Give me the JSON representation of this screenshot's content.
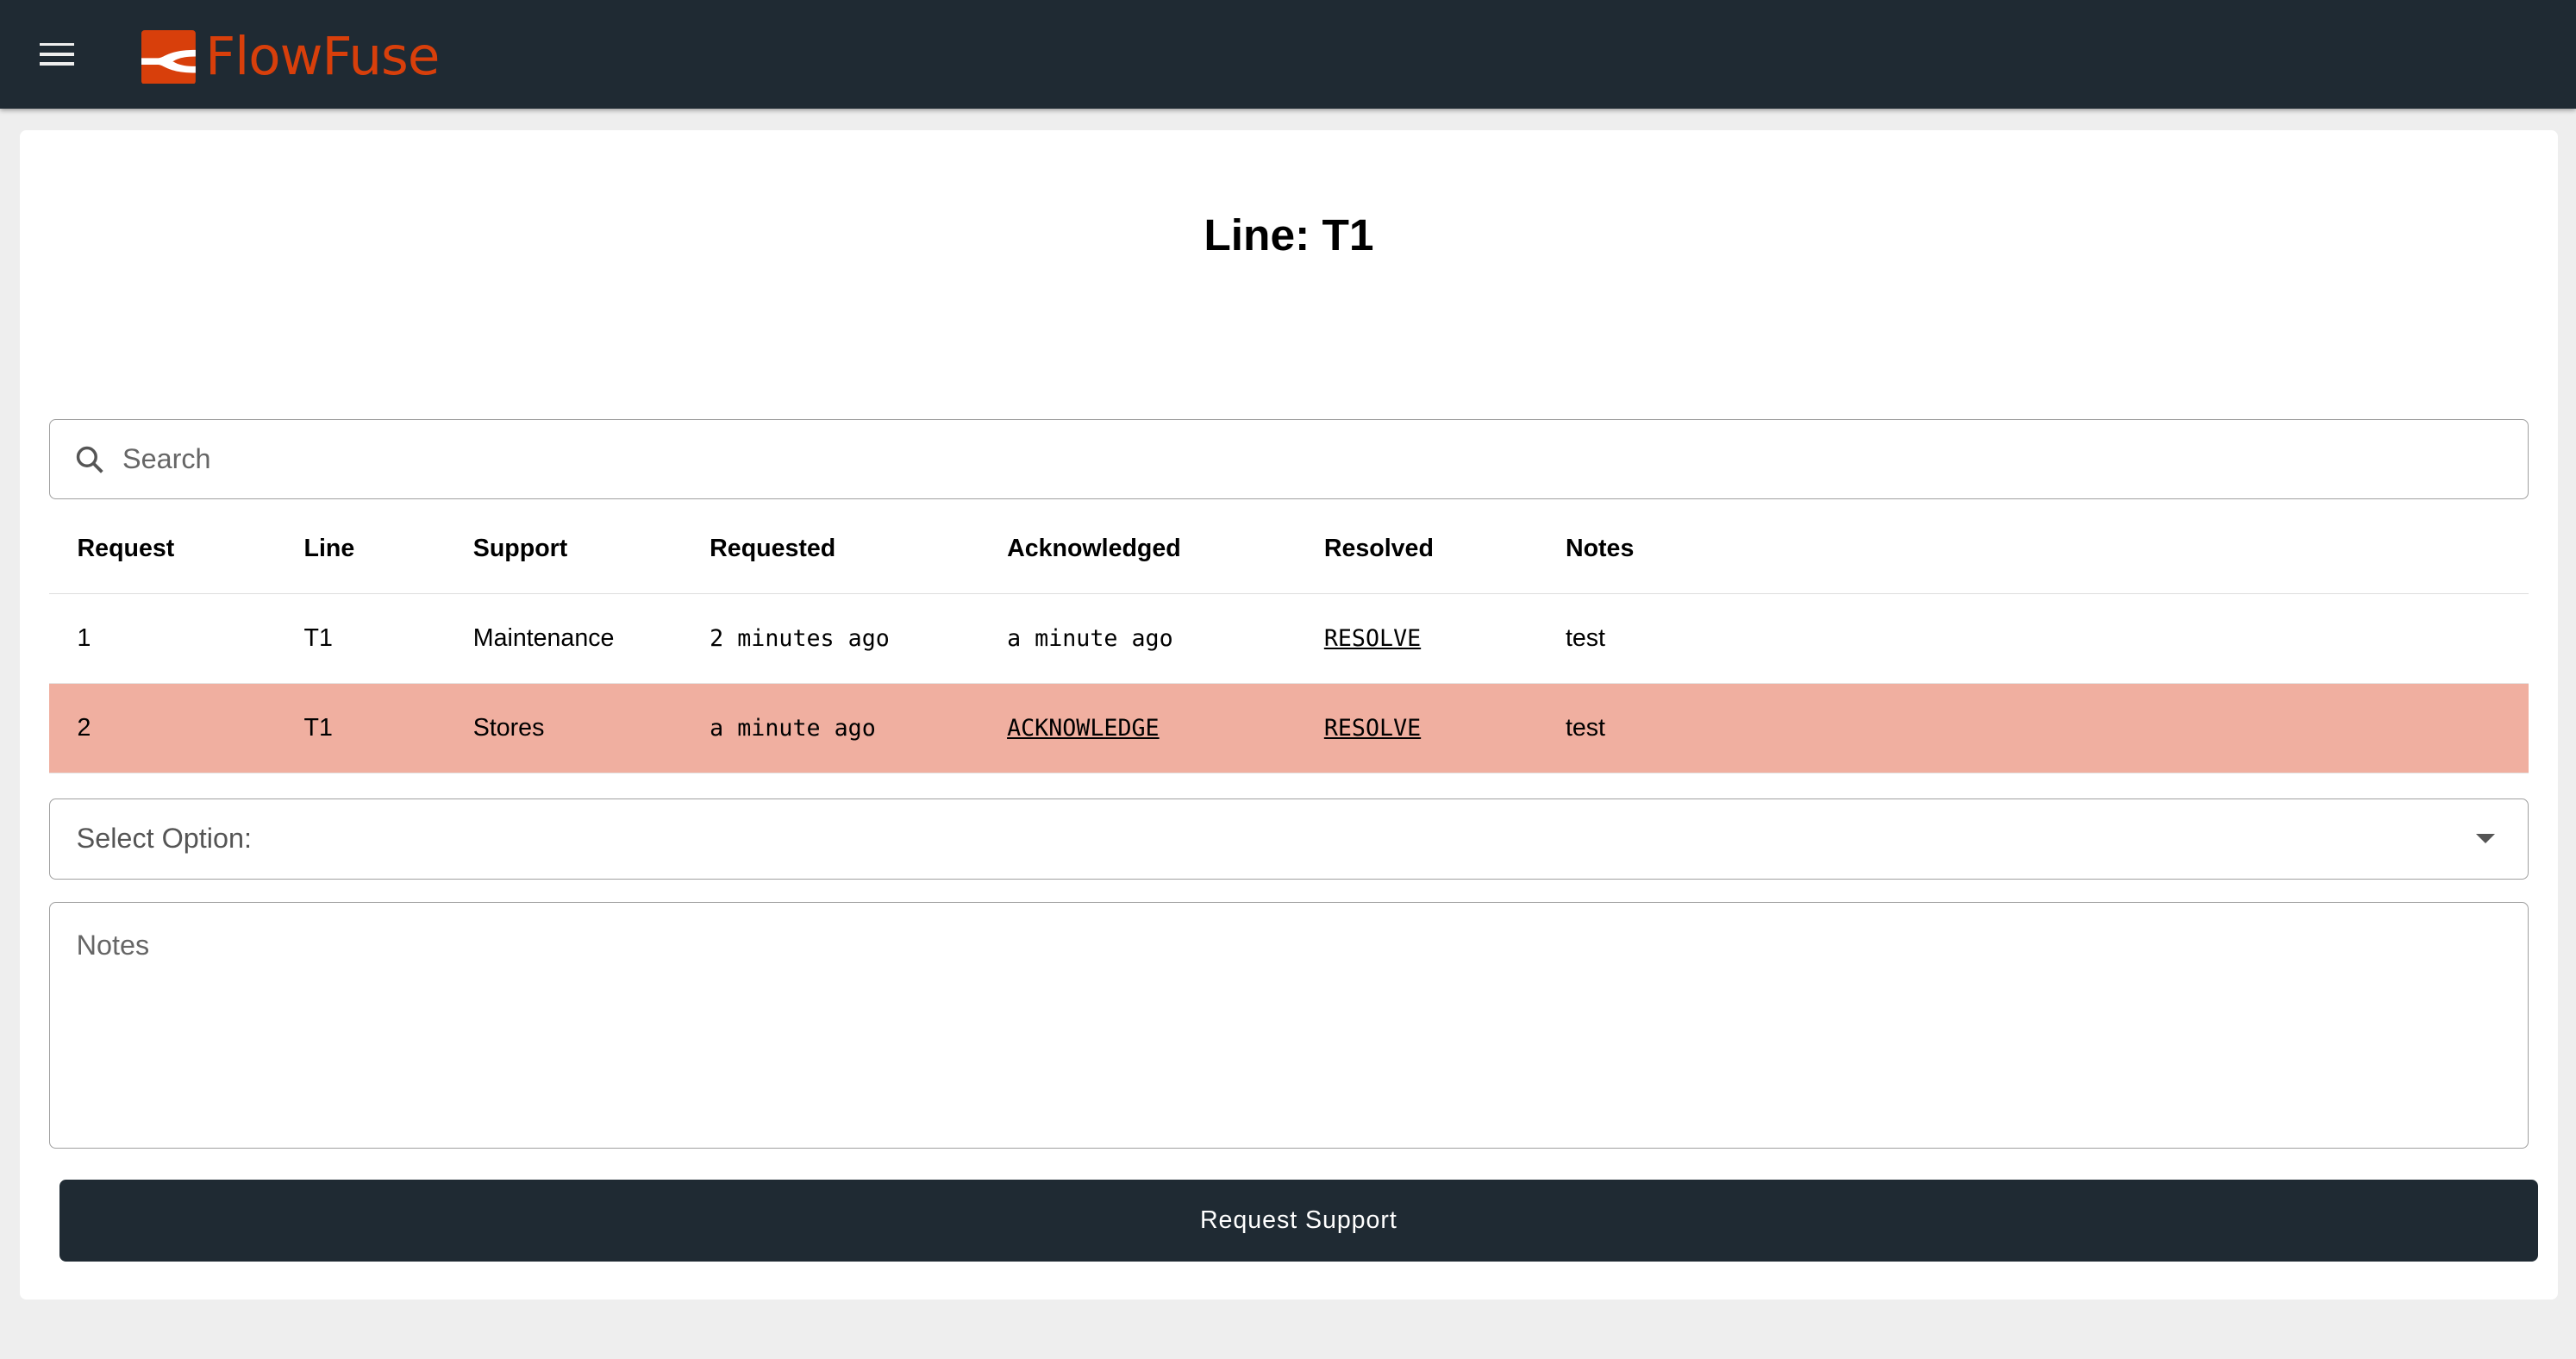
{
  "header": {
    "brand": "FlowFuse",
    "brand_color": "#d83f0b",
    "bg_color": "#1f2a33",
    "menu_icon": "hamburger-icon"
  },
  "page": {
    "title": "Line: T1"
  },
  "search": {
    "placeholder": "Search",
    "icon": "search-icon"
  },
  "table": {
    "columns": [
      "Request",
      "Line",
      "Support",
      "Requested",
      "Acknowledged",
      "Resolved",
      "Notes"
    ],
    "rows": [
      {
        "request": "1",
        "line": "T1",
        "support": "Maintenance",
        "requested": "2 minutes ago",
        "acknowledged": "a minute ago",
        "resolved": "RESOLVE",
        "notes": "test",
        "highlighted": false
      },
      {
        "request": "2",
        "line": "T1",
        "support": "Stores",
        "requested": "a minute ago",
        "acknowledged": "ACKNOWLEDGE",
        "resolved": "RESOLVE",
        "notes": "test",
        "highlighted": true,
        "highlight_color": "#f0afa0"
      }
    ]
  },
  "form": {
    "select_label": "Select Option:",
    "notes_placeholder": "Notes",
    "submit_label": "Request Support"
  }
}
